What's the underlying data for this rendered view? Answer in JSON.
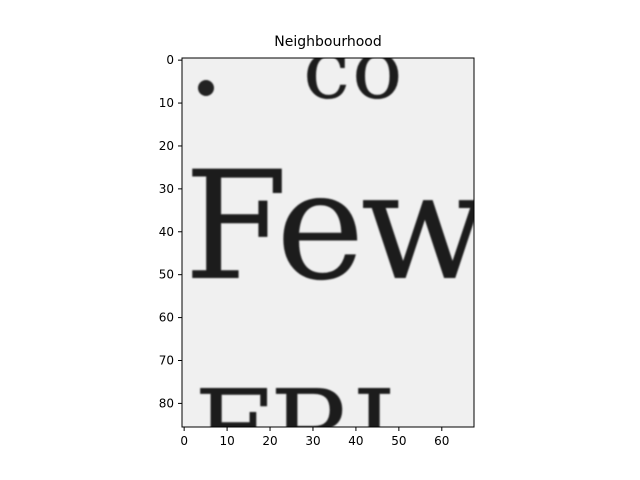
{
  "chart_data": {
    "type": "heatmap",
    "title": "Neighbourhood",
    "xlabel": "",
    "ylabel": "",
    "colormap": "gray",
    "xlim": [
      -0.5,
      67.5
    ],
    "ylim": [
      85.5,
      -0.5
    ],
    "x_ticks": [
      0,
      10,
      20,
      30,
      40,
      50,
      60
    ],
    "y_ticks": [
      0,
      10,
      20,
      30,
      40,
      50,
      60,
      70,
      80
    ],
    "image_content": {
      "description_words": [
        "co",
        "Few",
        "FRI"
      ],
      "background_color": "#f0f0f0",
      "ink_color": "#1c1c1c"
    }
  }
}
